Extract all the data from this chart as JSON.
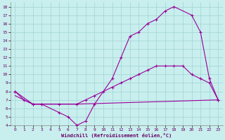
{
  "xlabel": "Windchill (Refroidissement éolien,°C)",
  "bg_color": "#c8eeee",
  "line_color": "#990099",
  "xlim": [
    -0.5,
    23.5
  ],
  "ylim": [
    4,
    18.5
  ],
  "xticks": [
    0,
    1,
    2,
    3,
    4,
    5,
    6,
    7,
    8,
    9,
    10,
    11,
    12,
    13,
    14,
    15,
    16,
    17,
    18,
    19,
    20,
    21,
    22,
    23
  ],
  "yticks": [
    4,
    5,
    6,
    7,
    8,
    9,
    10,
    11,
    12,
    13,
    14,
    15,
    16,
    17,
    18
  ],
  "series1_x": [
    0,
    1,
    2,
    3,
    5,
    6,
    7,
    8,
    9,
    11,
    12,
    13,
    14,
    15,
    16,
    17,
    18,
    20,
    21,
    22,
    23
  ],
  "series1_y": [
    8,
    7,
    6.5,
    6.5,
    5.5,
    5,
    4,
    4.5,
    6.5,
    9.5,
    12,
    14.5,
    15,
    16,
    16.5,
    17.5,
    18,
    17,
    15,
    9.5,
    7
  ],
  "series2_x": [
    0,
    2,
    3,
    5,
    7,
    8,
    9,
    10,
    11,
    12,
    13,
    14,
    15,
    16,
    17,
    18,
    19,
    20,
    21,
    22,
    23
  ],
  "series2_y": [
    8,
    6.5,
    6.5,
    6.5,
    6.5,
    7,
    7.5,
    8,
    8.5,
    9,
    9.5,
    10,
    10.5,
    11,
    11,
    11,
    11,
    10,
    9.5,
    9,
    7
  ],
  "series3_x": [
    0,
    2,
    3,
    4,
    5,
    7,
    23
  ],
  "series3_y": [
    7.5,
    6.5,
    6.5,
    6.5,
    6.5,
    6.5,
    7
  ]
}
